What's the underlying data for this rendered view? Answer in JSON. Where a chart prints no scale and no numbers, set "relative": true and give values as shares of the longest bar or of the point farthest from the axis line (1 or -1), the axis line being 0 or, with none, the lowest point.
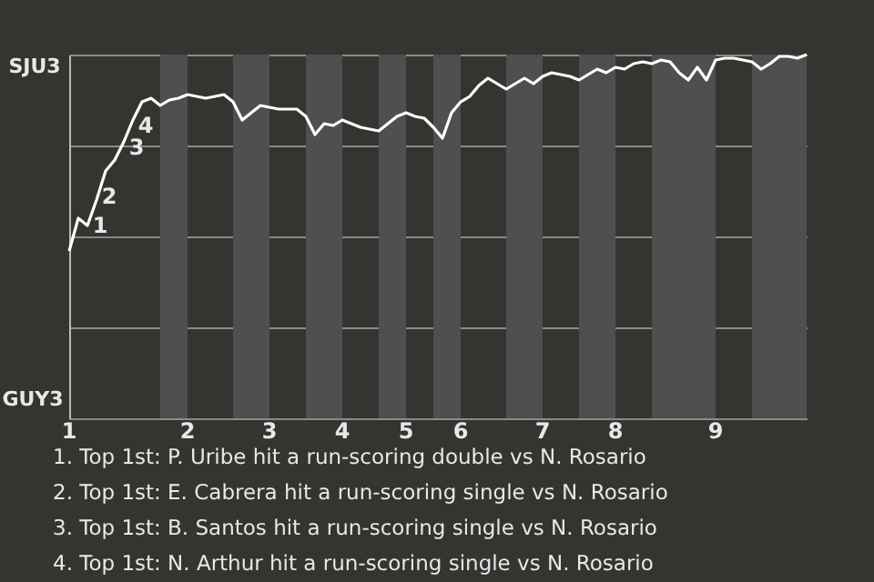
{
  "chart_data": {
    "type": "line",
    "relative": true,
    "categories": [
      "1",
      null,
      null,
      null,
      null,
      null,
      null,
      null,
      null,
      null,
      null,
      null,
      null,
      "2",
      null,
      null,
      null,
      null,
      null,
      null,
      null,
      null,
      "3",
      null,
      null,
      null,
      null,
      null,
      null,
      null,
      "4",
      null,
      null,
      null,
      null,
      null,
      null,
      "5",
      null,
      null,
      null,
      null,
      null,
      "6",
      null,
      null,
      null,
      null,
      null,
      null,
      null,
      null,
      "7",
      null,
      null,
      null,
      null,
      null,
      null,
      null,
      "8",
      null,
      null,
      null,
      null,
      null,
      null,
      null,
      null,
      null,
      null,
      "9",
      null,
      null,
      null,
      null,
      null,
      null,
      null,
      null,
      null,
      null
    ],
    "series": [
      {
        "color": "#ffffff",
        "values": [
          0.46,
          0.55,
          0.53,
          0.6,
          0.68,
          0.71,
          0.76,
          0.82,
          0.87,
          0.88,
          0.86,
          0.875,
          0.88,
          0.89,
          0.885,
          0.88,
          0.885,
          0.89,
          0.87,
          0.82,
          0.84,
          0.86,
          0.855,
          0.85,
          0.85,
          0.85,
          0.83,
          0.78,
          0.81,
          0.805,
          0.82,
          0.81,
          0.8,
          0.795,
          0.79,
          0.81,
          0.83,
          0.84,
          0.83,
          0.825,
          0.8,
          0.77,
          0.84,
          0.87,
          0.885,
          0.915,
          0.935,
          0.92,
          0.905,
          0.92,
          0.935,
          0.92,
          0.94,
          0.95,
          0.945,
          0.94,
          0.93,
          0.945,
          0.96,
          0.95,
          0.965,
          0.96,
          0.975,
          0.98,
          0.975,
          0.985,
          0.98,
          0.95,
          0.93,
          0.965,
          0.93,
          0.985,
          0.99,
          0.99,
          0.985,
          0.98,
          0.96,
          0.975,
          0.995,
          0.995,
          0.99,
          1.0
        ]
      }
    ],
    "grid": "y",
    "annotations": [
      "SJU3",
      "GUY3",
      "1",
      "2",
      "3",
      "4",
      "1. Top 1st: P. Uribe hit a run-scoring double vs N. Rosario",
      "2. Top 1st: E. Cabrera hit a run-scoring single vs N. Rosario",
      "3. Top 1st: B. Santos hit a run-scoring single vs N. Rosario",
      "4. Top 1st: N. Arthur hit a run-scoring single vs N. Rosario"
    ]
  }
}
